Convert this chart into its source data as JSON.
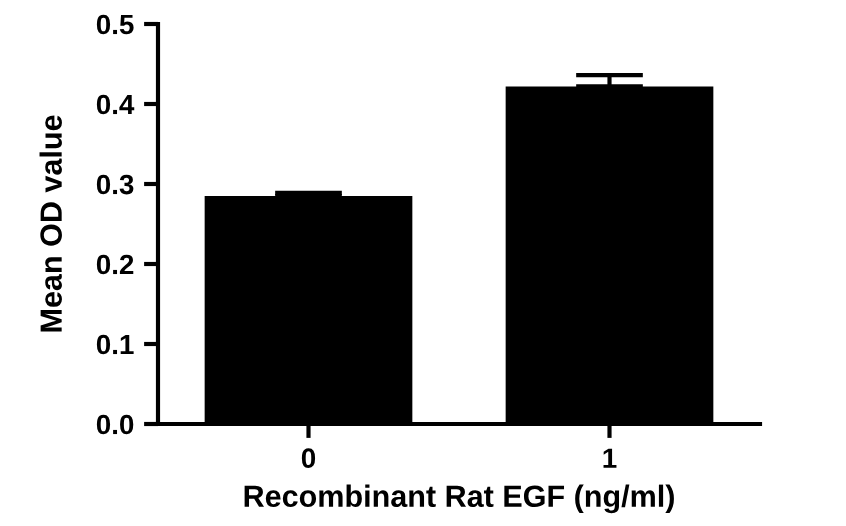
{
  "chart_data": {
    "type": "bar",
    "xlabel": "Recombinant Rat EGF (ng/ml)",
    "ylabel": "Mean OD value",
    "categories": [
      "0",
      "1"
    ],
    "values": [
      0.285,
      0.422
    ],
    "errors": [
      [
        0.285,
        0.289
      ],
      [
        0.422,
        0.436
      ]
    ],
    "color": "#000000",
    "ylim": [
      0,
      0.5
    ],
    "yticks": [
      {
        "value": 0,
        "label": "0.0"
      },
      0.1,
      0.2,
      0.3,
      0.4,
      0.5
    ],
    "grid": false,
    "legend": false
  }
}
